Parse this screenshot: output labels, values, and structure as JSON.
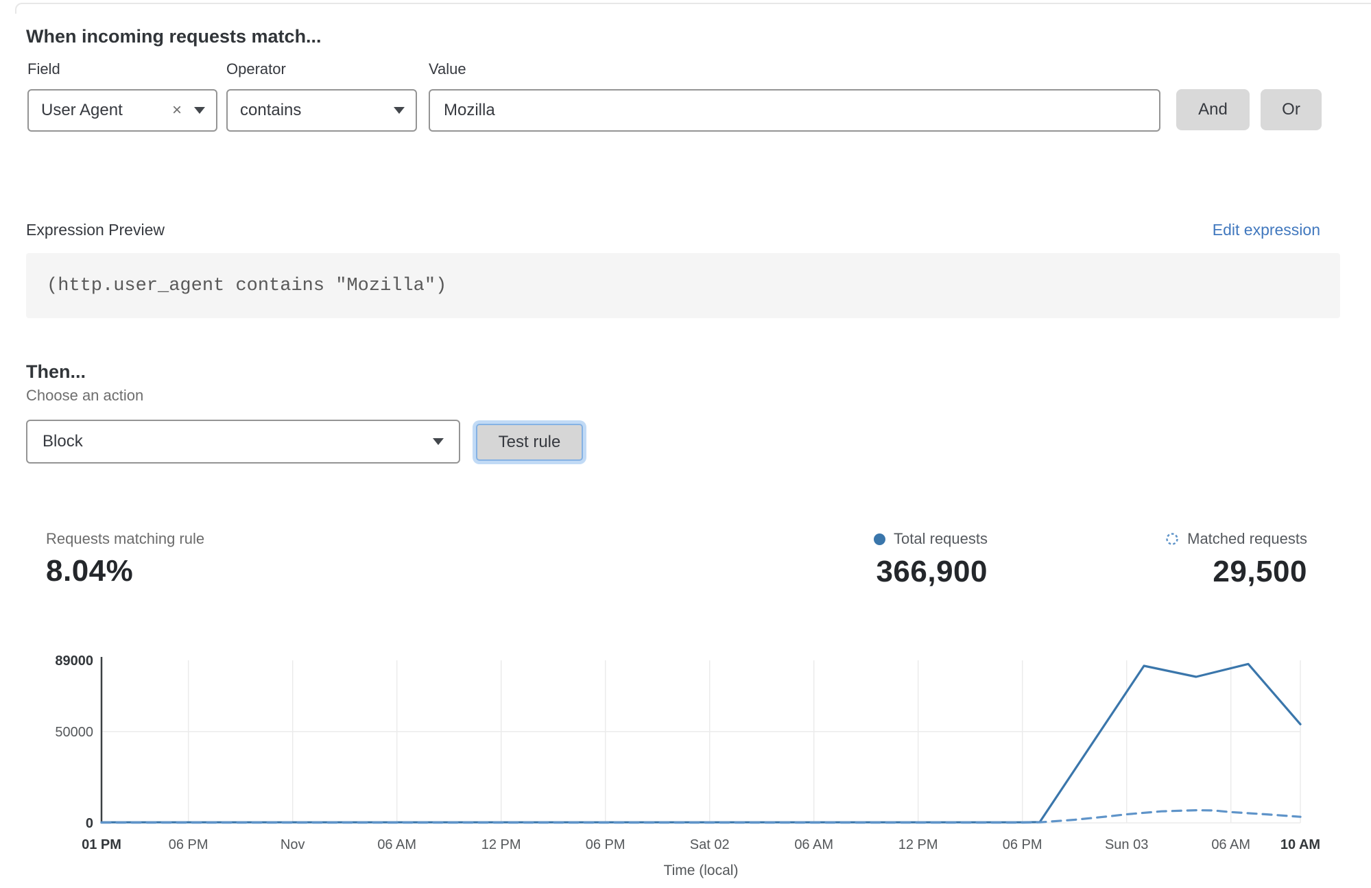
{
  "header": {
    "title": "When incoming requests match..."
  },
  "rule_builder": {
    "field": {
      "label": "Field",
      "value": "User Agent"
    },
    "operator": {
      "label": "Operator",
      "value": "contains"
    },
    "value": {
      "label": "Value",
      "value": "Mozilla"
    },
    "and_label": "And",
    "or_label": "Or"
  },
  "expression": {
    "label": "Expression Preview",
    "edit_link": "Edit expression",
    "code": "(http.user_agent contains \"Mozilla\")"
  },
  "action": {
    "heading": "Then...",
    "label": "Choose an action",
    "value": "Block",
    "test_button": "Test rule"
  },
  "stats": {
    "matching": {
      "label": "Requests matching rule",
      "value": "8.04%"
    },
    "total": {
      "label": "Total requests",
      "value": "366,900"
    },
    "matched": {
      "label": "Matched requests",
      "value": "29,500"
    }
  },
  "colors": {
    "total_line_blue": "#3a76ab",
    "matched_line_blue": "#5f94c9",
    "link_blue": "#4178be",
    "button_gray": "#d9d9d9",
    "focus_ring_blue": "#85b2e4",
    "code_background": "#f5f5f5",
    "grid_gray": "#ebebeb"
  },
  "chart_data": {
    "type": "line",
    "title": "",
    "xlabel": "Time (local)",
    "ylabel": "",
    "x_unit": "hours from start (Fri 01 PM)",
    "x_range": [
      0,
      69
    ],
    "ylim": [
      0,
      89000
    ],
    "grid": "vertical at ticks + horizontal at 50000 and 0",
    "legend_position": "top-right",
    "y_ticks": [
      {
        "v": 89000,
        "label": "89000",
        "bold": true
      },
      {
        "v": 50000,
        "label": "50000",
        "bold": false
      },
      {
        "v": 0,
        "label": "0",
        "bold": true
      }
    ],
    "x_ticks": [
      {
        "h": 0,
        "label": "01 PM",
        "bold": true
      },
      {
        "h": 5,
        "label": "06 PM",
        "bold": false
      },
      {
        "h": 11,
        "label": "Nov",
        "bold": false
      },
      {
        "h": 17,
        "label": "06 AM",
        "bold": false
      },
      {
        "h": 23,
        "label": "12 PM",
        "bold": false
      },
      {
        "h": 29,
        "label": "06 PM",
        "bold": false
      },
      {
        "h": 35,
        "label": "Sat 02",
        "bold": false
      },
      {
        "h": 41,
        "label": "06 AM",
        "bold": false
      },
      {
        "h": 47,
        "label": "12 PM",
        "bold": false
      },
      {
        "h": 53,
        "label": "06 PM",
        "bold": false
      },
      {
        "h": 59,
        "label": "Sun 03",
        "bold": false
      },
      {
        "h": 65,
        "label": "06 AM",
        "bold": false
      },
      {
        "h": 69,
        "label": "10 AM",
        "bold": true
      }
    ],
    "series": [
      {
        "name": "Total requests",
        "style": "solid",
        "color": "#3a76ab",
        "points": [
          [
            0,
            300
          ],
          [
            53,
            300
          ],
          [
            54,
            400
          ],
          [
            60,
            86000
          ],
          [
            63,
            80000
          ],
          [
            66,
            87000
          ],
          [
            69,
            54000
          ]
        ]
      },
      {
        "name": "Matched requests",
        "style": "dashed",
        "color": "#5f94c9",
        "points": [
          [
            0,
            150
          ],
          [
            53,
            150
          ],
          [
            54,
            300
          ],
          [
            56,
            1700
          ],
          [
            58,
            3600
          ],
          [
            59,
            4700
          ],
          [
            61,
            6300
          ],
          [
            63,
            6900
          ],
          [
            64,
            6800
          ],
          [
            65,
            5900
          ],
          [
            67,
            4700
          ],
          [
            69,
            3300
          ]
        ]
      }
    ]
  }
}
